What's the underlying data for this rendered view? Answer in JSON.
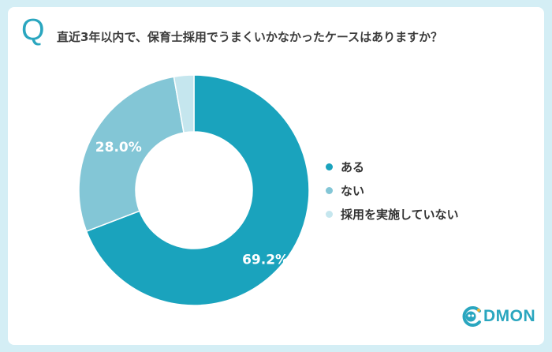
{
  "header": {
    "q_mark": "Q",
    "question": "直近3年以内で、保育士採用でうまくいかなかったケースはありますか？"
  },
  "chart_data": {
    "type": "pie",
    "donut": true,
    "categories": [
      "ある",
      "ない",
      "採用を実施していない"
    ],
    "values": [
      69.2,
      28.0,
      2.8
    ],
    "value_labels": [
      "69.2%",
      "28.0%",
      ""
    ],
    "colors": [
      "#1aa3bd",
      "#83c6d6",
      "#c5e6ee"
    ],
    "legend_position": "right"
  },
  "legend": {
    "items": [
      {
        "label": "ある",
        "color": "#1aa3bd"
      },
      {
        "label": "ない",
        "color": "#83c6d6"
      },
      {
        "label": "採用を実施していない",
        "color": "#c5e6ee"
      }
    ]
  },
  "brand": {
    "logo_text": "DMON",
    "logo_icon": "codmon-face-icon",
    "accent_color": "#2aa6bf"
  }
}
